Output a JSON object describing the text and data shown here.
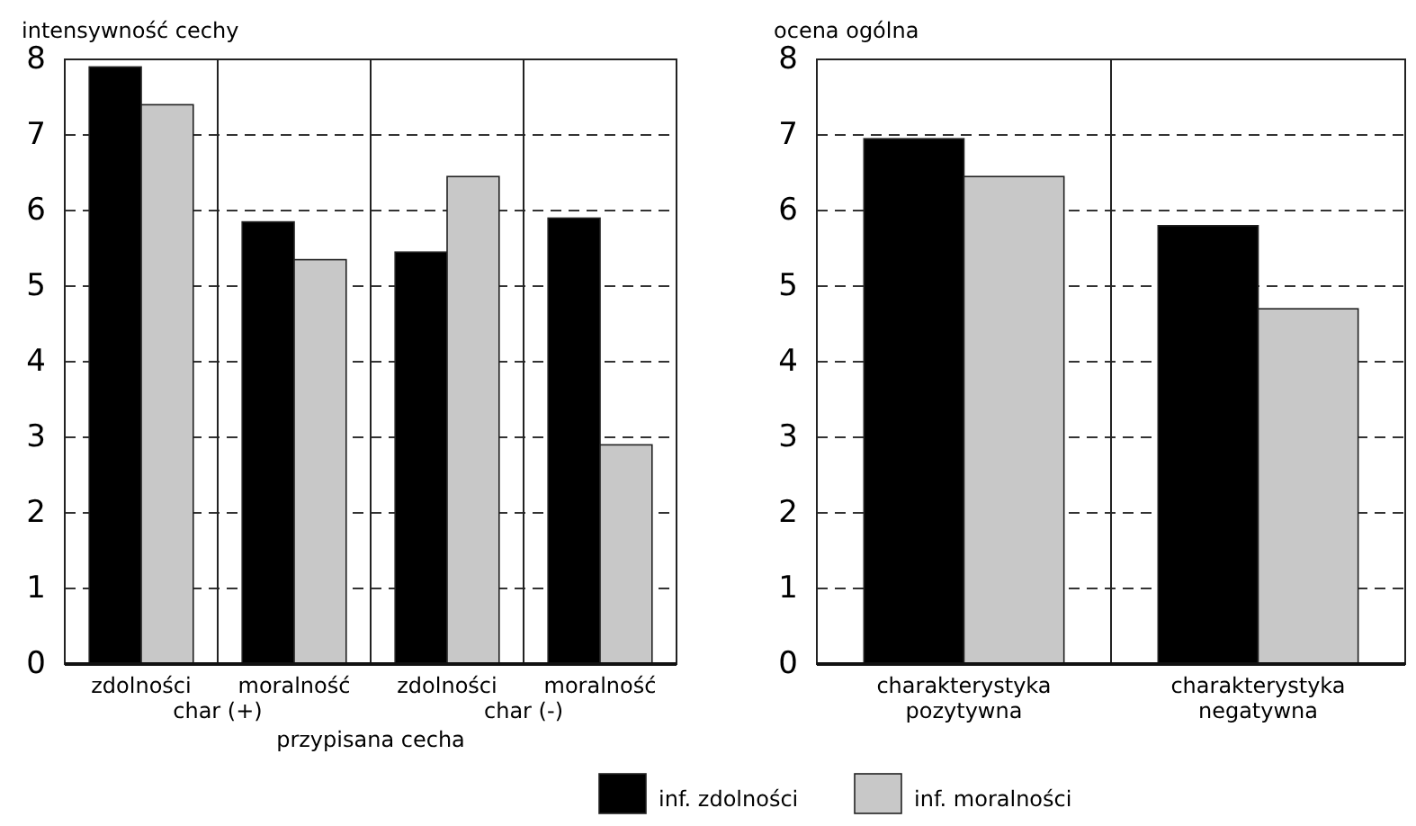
{
  "chart_data": [
    {
      "type": "bar",
      "ylabel": "intensywność cechy",
      "xlabel": "przypisana cecha",
      "categories": [
        "zdolności",
        "moralność",
        "zdolności",
        "moralność"
      ],
      "annotations": [
        "char (+)",
        "char (-)"
      ],
      "ylim": [
        0,
        8
      ],
      "yticks": [
        0,
        1,
        2,
        3,
        4,
        5,
        6,
        7,
        8
      ],
      "grid": "y",
      "legend": "bottom",
      "series": [
        {
          "name": "inf. zdolności",
          "color": "#000000",
          "values": [
            7.9,
            5.85,
            5.45,
            5.9
          ]
        },
        {
          "name": "inf. moralności",
          "color": "#c8c8c8",
          "values": [
            7.4,
            5.35,
            6.45,
            2.9
          ]
        }
      ]
    },
    {
      "type": "bar",
      "ylabel": "ocena ogólna",
      "categories": [
        "charakterystyka\npozytywna",
        "charakterystyka\nnegatywna"
      ],
      "ylim": [
        0,
        8
      ],
      "yticks": [
        0,
        1,
        2,
        3,
        4,
        5,
        6,
        7,
        8
      ],
      "grid": "y",
      "series": [
        {
          "color": "#000000",
          "values": [
            6.95,
            5.8
          ]
        },
        {
          "color": "#c8c8c8",
          "values": [
            6.45,
            4.7
          ]
        }
      ]
    }
  ]
}
